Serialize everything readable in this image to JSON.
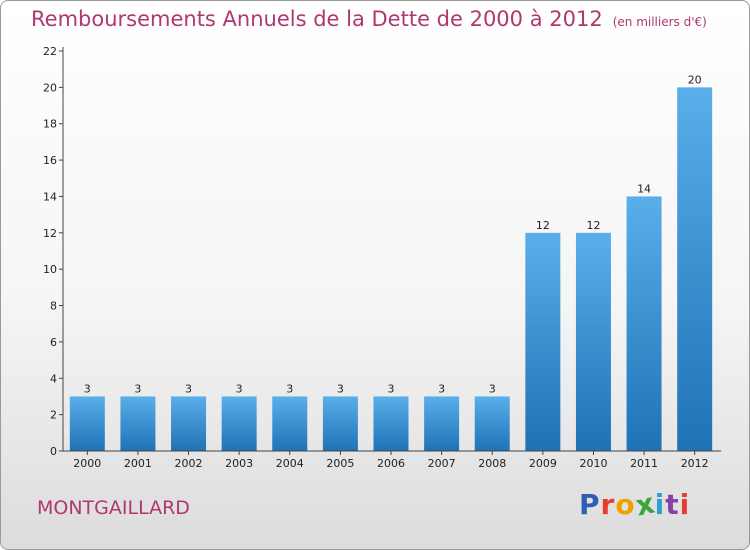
{
  "title": "Remboursements Annuels de la Dette de 2000 à 2012",
  "subtitle": "(en milliers d'€)",
  "commune": "MONTGAILLARD",
  "logo": {
    "text": "Proxiti",
    "letter_colors": [
      "#2f5fb0",
      "#e63d2e",
      "#f0a000",
      "#3aa63a",
      "#2f9fd0",
      "#8a3fa8",
      "#e63d2e"
    ]
  },
  "colors": {
    "title": "#b0386f",
    "bar_light": "#5aaeea",
    "bar_dark": "#1f72b5"
  },
  "chart_data": {
    "type": "bar",
    "categories": [
      "2000",
      "2001",
      "2002",
      "2003",
      "2004",
      "2005",
      "2006",
      "2007",
      "2008",
      "2009",
      "2010",
      "2011",
      "2012"
    ],
    "values": [
      3,
      3,
      3,
      3,
      3,
      3,
      3,
      3,
      3,
      12,
      12,
      14,
      20
    ],
    "ylim": [
      0,
      22
    ],
    "yticks": [
      0,
      2,
      4,
      6,
      8,
      10,
      12,
      14,
      16,
      18,
      20,
      22
    ],
    "grid": false,
    "data_labels": true
  }
}
